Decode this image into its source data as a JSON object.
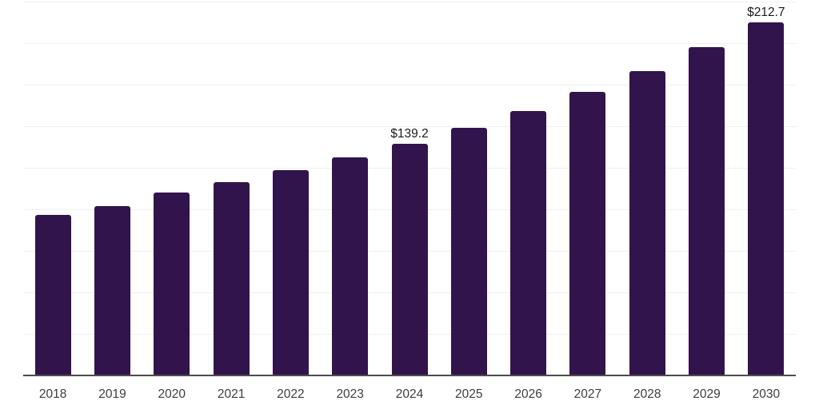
{
  "chart_data": {
    "type": "bar",
    "title": "",
    "xlabel": "",
    "ylabel": "",
    "categories": [
      "2018",
      "2019",
      "2020",
      "2021",
      "2022",
      "2023",
      "2024",
      "2025",
      "2026",
      "2027",
      "2028",
      "2029",
      "2030"
    ],
    "values": [
      96.6,
      101.9,
      110.1,
      116.4,
      123.6,
      131.3,
      139.2,
      148.9,
      159.1,
      170.7,
      183.2,
      197.6,
      212.7
    ],
    "point_labels": {
      "2024": "$139.2",
      "2030": "$212.7"
    },
    "ylim": [
      0,
      225
    ],
    "grid_interval": 25,
    "grid": true,
    "legend": "none",
    "colors": {
      "bar": "#32144c",
      "gridline": "#f0f0f0",
      "axis_line": "#4d4d4d",
      "tick_label": "#3d3d3d",
      "data_label": "#1a1a1a",
      "background": "#ffffff"
    }
  }
}
